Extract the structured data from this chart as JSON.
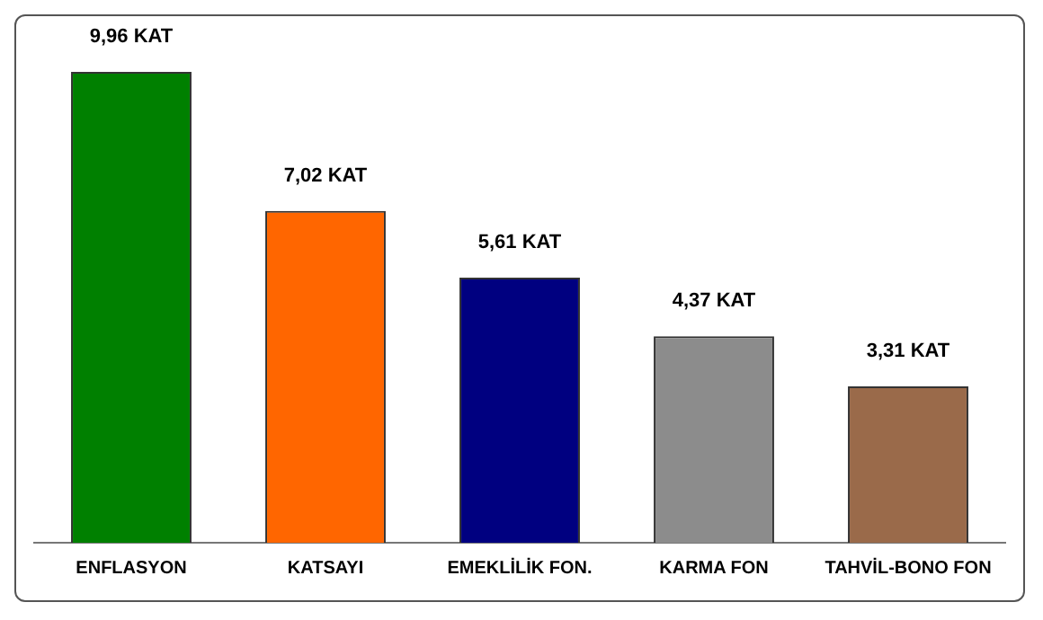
{
  "chart_data": {
    "type": "bar",
    "categories": [
      "ENFLASYON",
      "KATSAYI",
      "EMEKLİLİK FON.",
      "KARMA FON",
      "TAHVİL-BONO FON"
    ],
    "values": [
      9.96,
      7.02,
      5.61,
      4.37,
      3.31
    ],
    "colors": [
      "#008000",
      "#ff6600",
      "#000080",
      "#8c8c8c",
      "#9a6a4a"
    ],
    "value_labels": [
      "9,96 KAT",
      "7,02 KAT",
      "5,61 KAT",
      "4,37 KAT",
      "3,31 KAT"
    ],
    "grid": false,
    "legend": false
  }
}
